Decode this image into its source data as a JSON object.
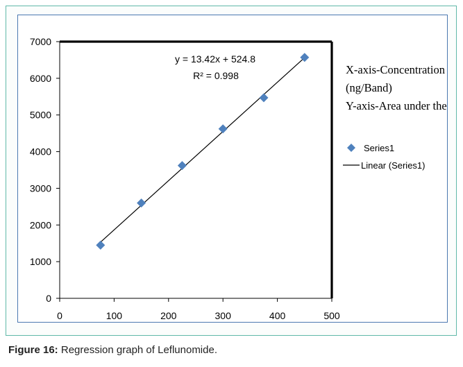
{
  "caption": {
    "label": "Figure 16:",
    "text": " Regression graph of Leflunomide."
  },
  "annotation": {
    "lines": [
      "X-axis-Concentration",
      "(ng/Band)",
      "Y-axis-Area under the"
    ]
  },
  "colors": {
    "marker": "#4f81bd",
    "frame": "#5fb8a8",
    "inner_border": "#4a78b0",
    "plot_border": "#000000"
  },
  "chart_data": {
    "type": "scatter",
    "title": "",
    "xlabel": "",
    "ylabel": "",
    "xlim": [
      0,
      500
    ],
    "ylim": [
      0,
      7000
    ],
    "x_ticks": [
      0,
      100,
      200,
      300,
      400,
      500
    ],
    "y_ticks": [
      0,
      1000,
      2000,
      3000,
      4000,
      5000,
      6000,
      7000
    ],
    "grid": false,
    "legend_position": "right",
    "series": [
      {
        "name": "Series1",
        "marker": "diamond",
        "x": [
          75,
          150,
          225,
          300,
          375,
          450
        ],
        "y": [
          1450,
          2600,
          3620,
          4620,
          5470,
          6570
        ]
      }
    ],
    "trendline": {
      "name": "Linear (Series1)",
      "slope": 13.42,
      "intercept": 524.8,
      "x_range": [
        75,
        450
      ],
      "equation": "y = 13.42x + 524.8",
      "r2": "R² = 0.998"
    }
  }
}
